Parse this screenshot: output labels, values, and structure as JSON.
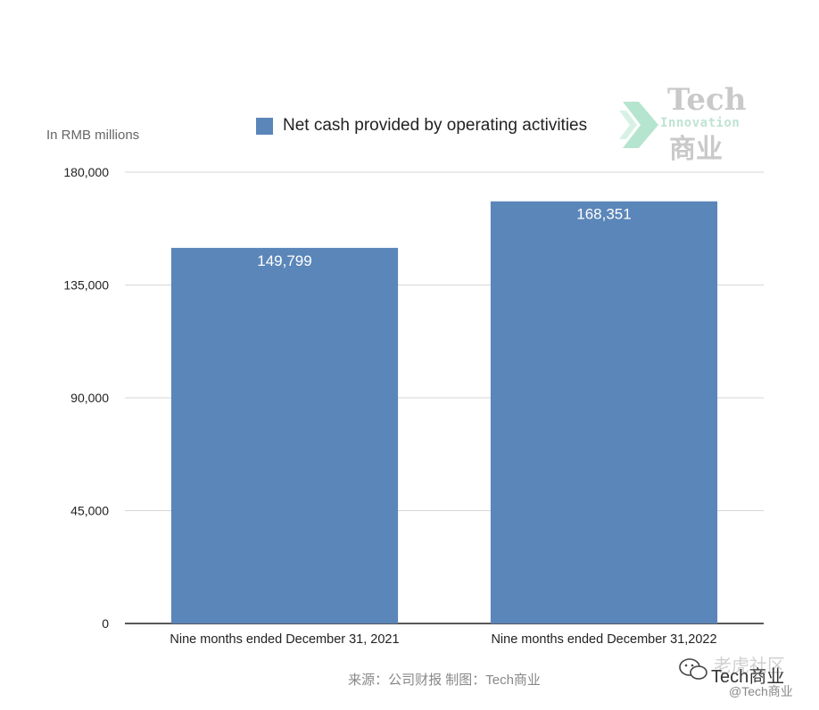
{
  "chart_data": {
    "type": "bar",
    "unit_label": "In RMB millions",
    "categories": [
      "Nine months ended December 31, 2021",
      "Nine months ended December 31,2022"
    ],
    "series": [
      {
        "name": "Net cash provided by operating activities",
        "values": [
          149799,
          168351
        ],
        "value_labels": [
          "149,799",
          "168,351"
        ]
      }
    ],
    "ylim": [
      0,
      180000
    ],
    "yticks": [
      0,
      45000,
      90000,
      135000,
      180000
    ],
    "ytick_labels": [
      "0",
      "45,000",
      "90,000",
      "135,000",
      "180,000"
    ],
    "grid": true,
    "legend_position": "top-center",
    "colors": {
      "bar": "#5b86b9",
      "grid": "#d6d6d6",
      "axis": "#222222",
      "value_label": "#ffffff"
    }
  },
  "logo": {
    "word": "Tech",
    "sub": "Innovation",
    "cn": "商业"
  },
  "source_text": "来源：公司财报 制图：Tech商业",
  "watermark": {
    "title": "老虎社区",
    "name": "Tech商业",
    "handle": "@Tech商业",
    "icon": "wechat-icon"
  }
}
